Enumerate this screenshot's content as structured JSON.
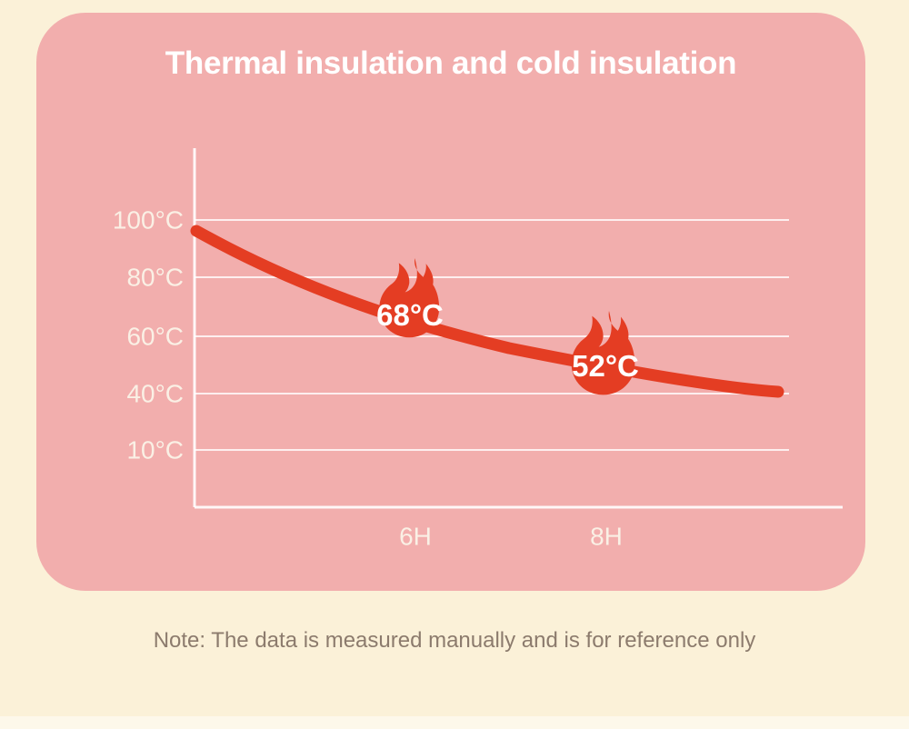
{
  "title": "Thermal insulation and cold insulation",
  "note": "Note: The data is measured manually and is for reference only",
  "colors": {
    "background": "#FBF1D8",
    "card": "#F2AEAD",
    "curve": "#E43D23",
    "flame": "#E43D23",
    "grid_line": "#FFFFFF",
    "tick_label": "#FAF0E5",
    "title_text": "#FFFFFF",
    "note_text": "#8C7B6D"
  },
  "chart_data": {
    "type": "line",
    "title": "Thermal insulation and cold insulation",
    "xlabel": "",
    "ylabel": "",
    "grid": true,
    "legend": false,
    "y_ticks": [
      "100°C",
      "80°C",
      "60°C",
      "40°C",
      "10°C"
    ],
    "x_ticks": [
      "6H",
      "8H"
    ],
    "y_axis_unit": "°C",
    "x_axis_unit": "H",
    "curve_description": "temperature decay over time",
    "start_value": 96,
    "end_value": 40,
    "points": [
      {
        "time": "6H",
        "value": 68,
        "label": "68°C",
        "marker": "flame-icon"
      },
      {
        "time": "8H",
        "value": 52,
        "label": "52°C",
        "marker": "flame-icon"
      }
    ]
  }
}
